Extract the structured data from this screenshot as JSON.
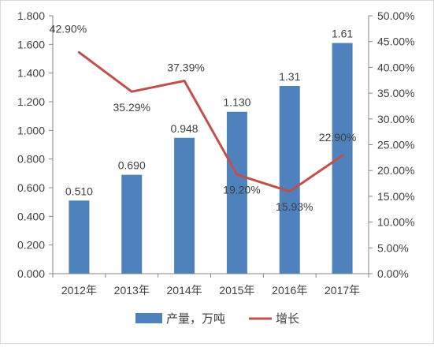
{
  "chart_data": {
    "type": "bar",
    "categories": [
      "2012年",
      "2013年",
      "2014年",
      "2015年",
      "2016年",
      "2017年"
    ],
    "series": [
      {
        "name": "产量，万吨",
        "type": "bar",
        "axis": "left",
        "values": [
          0.51,
          0.69,
          0.948,
          1.13,
          1.31,
          1.61
        ],
        "labels": [
          "0.510",
          "0.690",
          "0.948",
          "1.130",
          "1.31",
          "1.61"
        ],
        "color": "#4f81bd"
      },
      {
        "name": "增长",
        "type": "line",
        "axis": "right",
        "values": [
          42.9,
          35.29,
          37.39,
          19.2,
          15.93,
          22.9
        ],
        "labels": [
          "42.90%",
          "35.29%",
          "37.39%",
          "19.20%",
          "15.93%",
          "22.90%"
        ],
        "color": "#c0504d"
      }
    ],
    "y_left": {
      "range": [
        0,
        1.8
      ],
      "ticks": [
        "0.000",
        "0.200",
        "0.400",
        "0.600",
        "0.800",
        "1.000",
        "1.200",
        "1.400",
        "1.600",
        "1.800"
      ]
    },
    "y_right": {
      "range": [
        0,
        50
      ],
      "ticks": [
        "0.00%",
        "5.00%",
        "10.00%",
        "15.00%",
        "20.00%",
        "25.00%",
        "30.00%",
        "35.00%",
        "40.00%",
        "45.00%",
        "50.00%"
      ]
    },
    "grid": false,
    "legend": "bottom"
  }
}
